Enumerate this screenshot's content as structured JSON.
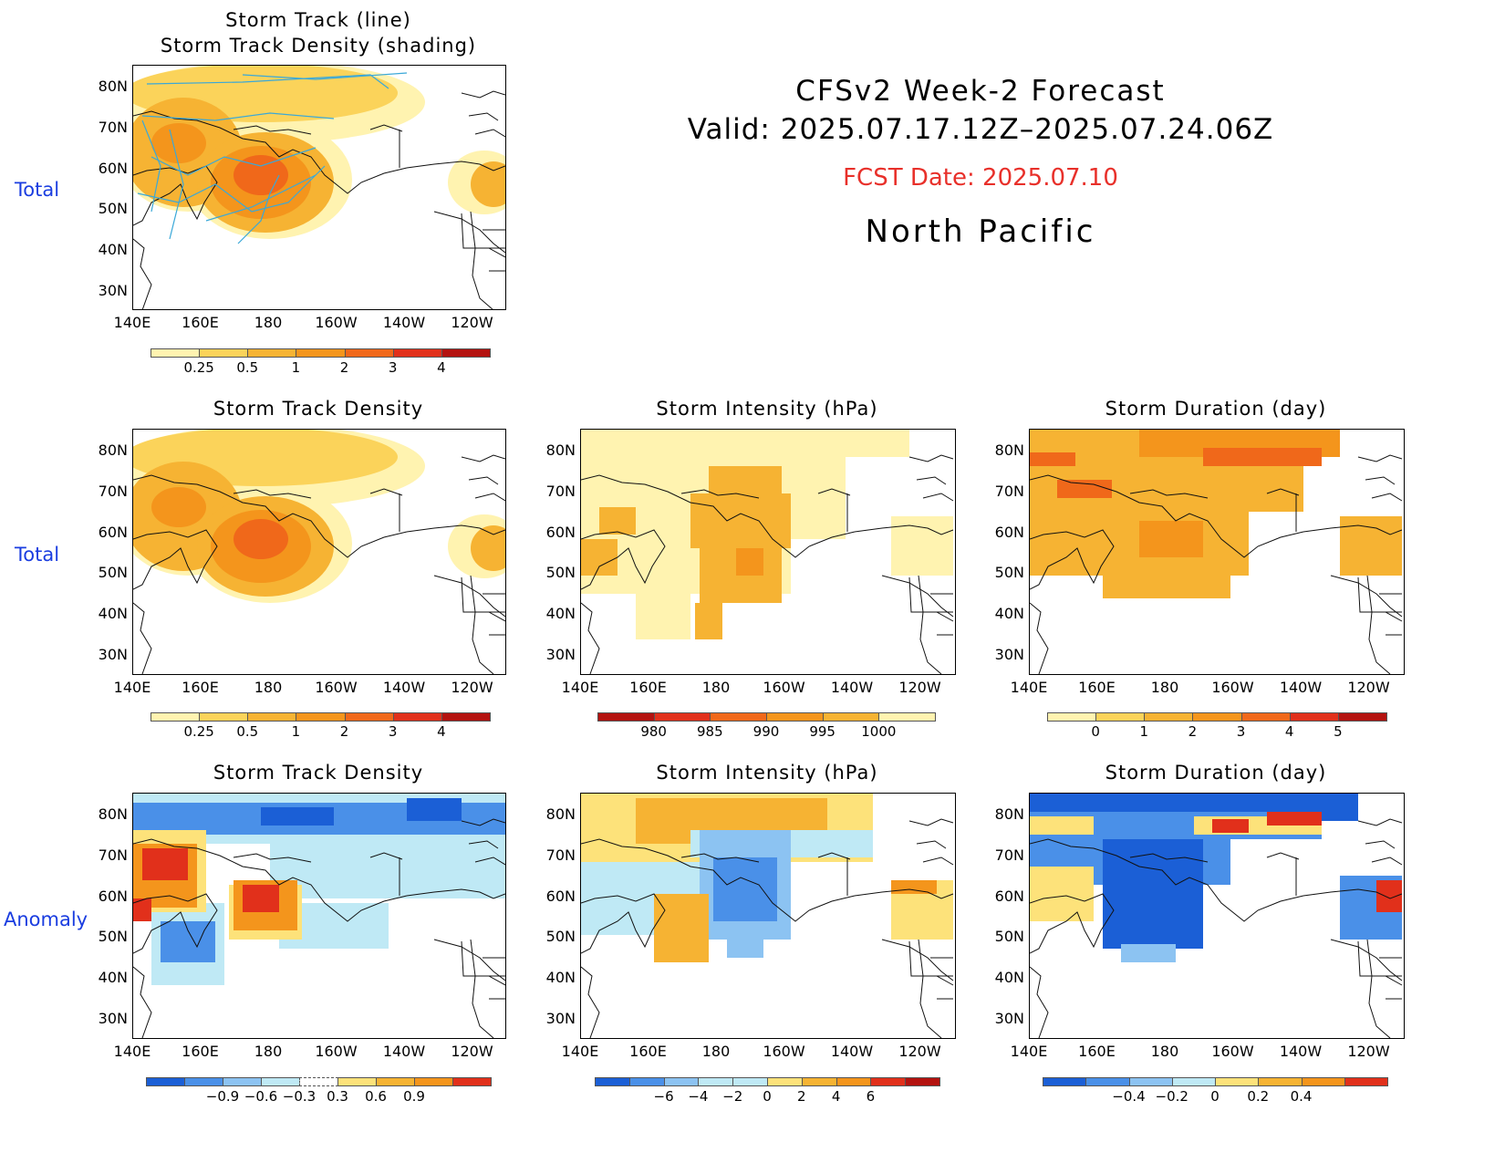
{
  "header": {
    "title": "CFSv2  Week-2  Forecast",
    "valid": "Valid:  2025.07.17.12Z–2025.07.24.06Z",
    "fcst_date": "FCST Date: 2025.07.10",
    "region": "North  Pacific"
  },
  "row_labels": {
    "r1": "Total",
    "r2": "Total",
    "r3": "Anomaly"
  },
  "panel_titles": {
    "p1_line1": "Storm Track (line)",
    "p1_line2": "Storm Track Density (shading)",
    "p2": "Storm Track Density",
    "p3": "Storm Intensity (hPa)",
    "p4": "Storm Duration (day)",
    "p5": "Storm Track Density",
    "p6": "Storm Intensity (hPa)",
    "p7": "Storm Duration (day)"
  },
  "axes": {
    "lat_labels": [
      "80N",
      "70N",
      "60N",
      "50N",
      "40N",
      "30N"
    ],
    "lon_labels": [
      "140E",
      "160E",
      "180",
      "160W",
      "140W",
      "120W"
    ]
  },
  "colorbars": {
    "density_total": {
      "ticks": [
        "0.25",
        "0.5",
        "1",
        "2",
        "3",
        "4"
      ],
      "colors": [
        "#fff3b0",
        "#fbd35a",
        "#f6b333",
        "#f4951c",
        "#f0681a",
        "#e1301b",
        "#b3120f"
      ]
    },
    "intensity_total": {
      "ticks": [
        "980",
        "985",
        "990",
        "995",
        "1000"
      ],
      "colors": [
        "#b3120f",
        "#e1301b",
        "#f0681a",
        "#f4951c",
        "#f6b333",
        "#fff3b0"
      ]
    },
    "duration_total": {
      "ticks": [
        "0",
        "1",
        "2",
        "3",
        "4",
        "5"
      ],
      "colors": [
        "#fff3b0",
        "#fbd35a",
        "#f6b333",
        "#f4951c",
        "#f0681a",
        "#e1301b",
        "#b3120f"
      ]
    },
    "density_anom": {
      "ticks": [
        "−0.9",
        "−0.6",
        "−0.3",
        "0.3",
        "0.6",
        "0.9"
      ],
      "colors": [
        "#1b5fd6",
        "#4a90e8",
        "#8cc3f2",
        "#bfe9f5",
        "#ffffff",
        "#fde27a",
        "#f6b333",
        "#f4951c",
        "#e1301b"
      ]
    },
    "intensity_anom": {
      "ticks": [
        "−6",
        "−4",
        "−2",
        "0",
        "2",
        "4",
        "6"
      ],
      "colors": [
        "#1b5fd6",
        "#4a90e8",
        "#8cc3f2",
        "#bfe9f5",
        "#bfe9f5",
        "#fde27a",
        "#f6b333",
        "#f4951c",
        "#e1301b",
        "#b3120f"
      ]
    },
    "duration_anom": {
      "ticks": [
        "−0.4",
        "−0.2",
        "0",
        "0.2",
        "0.4"
      ],
      "colors": [
        "#1b5fd6",
        "#4a90e8",
        "#8cc3f2",
        "#bfe9f5",
        "#fde27a",
        "#f6b333",
        "#f4951c",
        "#e1301b"
      ]
    }
  },
  "colors": {
    "fcst_date": "#e8302a",
    "row_label": "#1a3de0",
    "track_line": "#3aa8d8"
  }
}
